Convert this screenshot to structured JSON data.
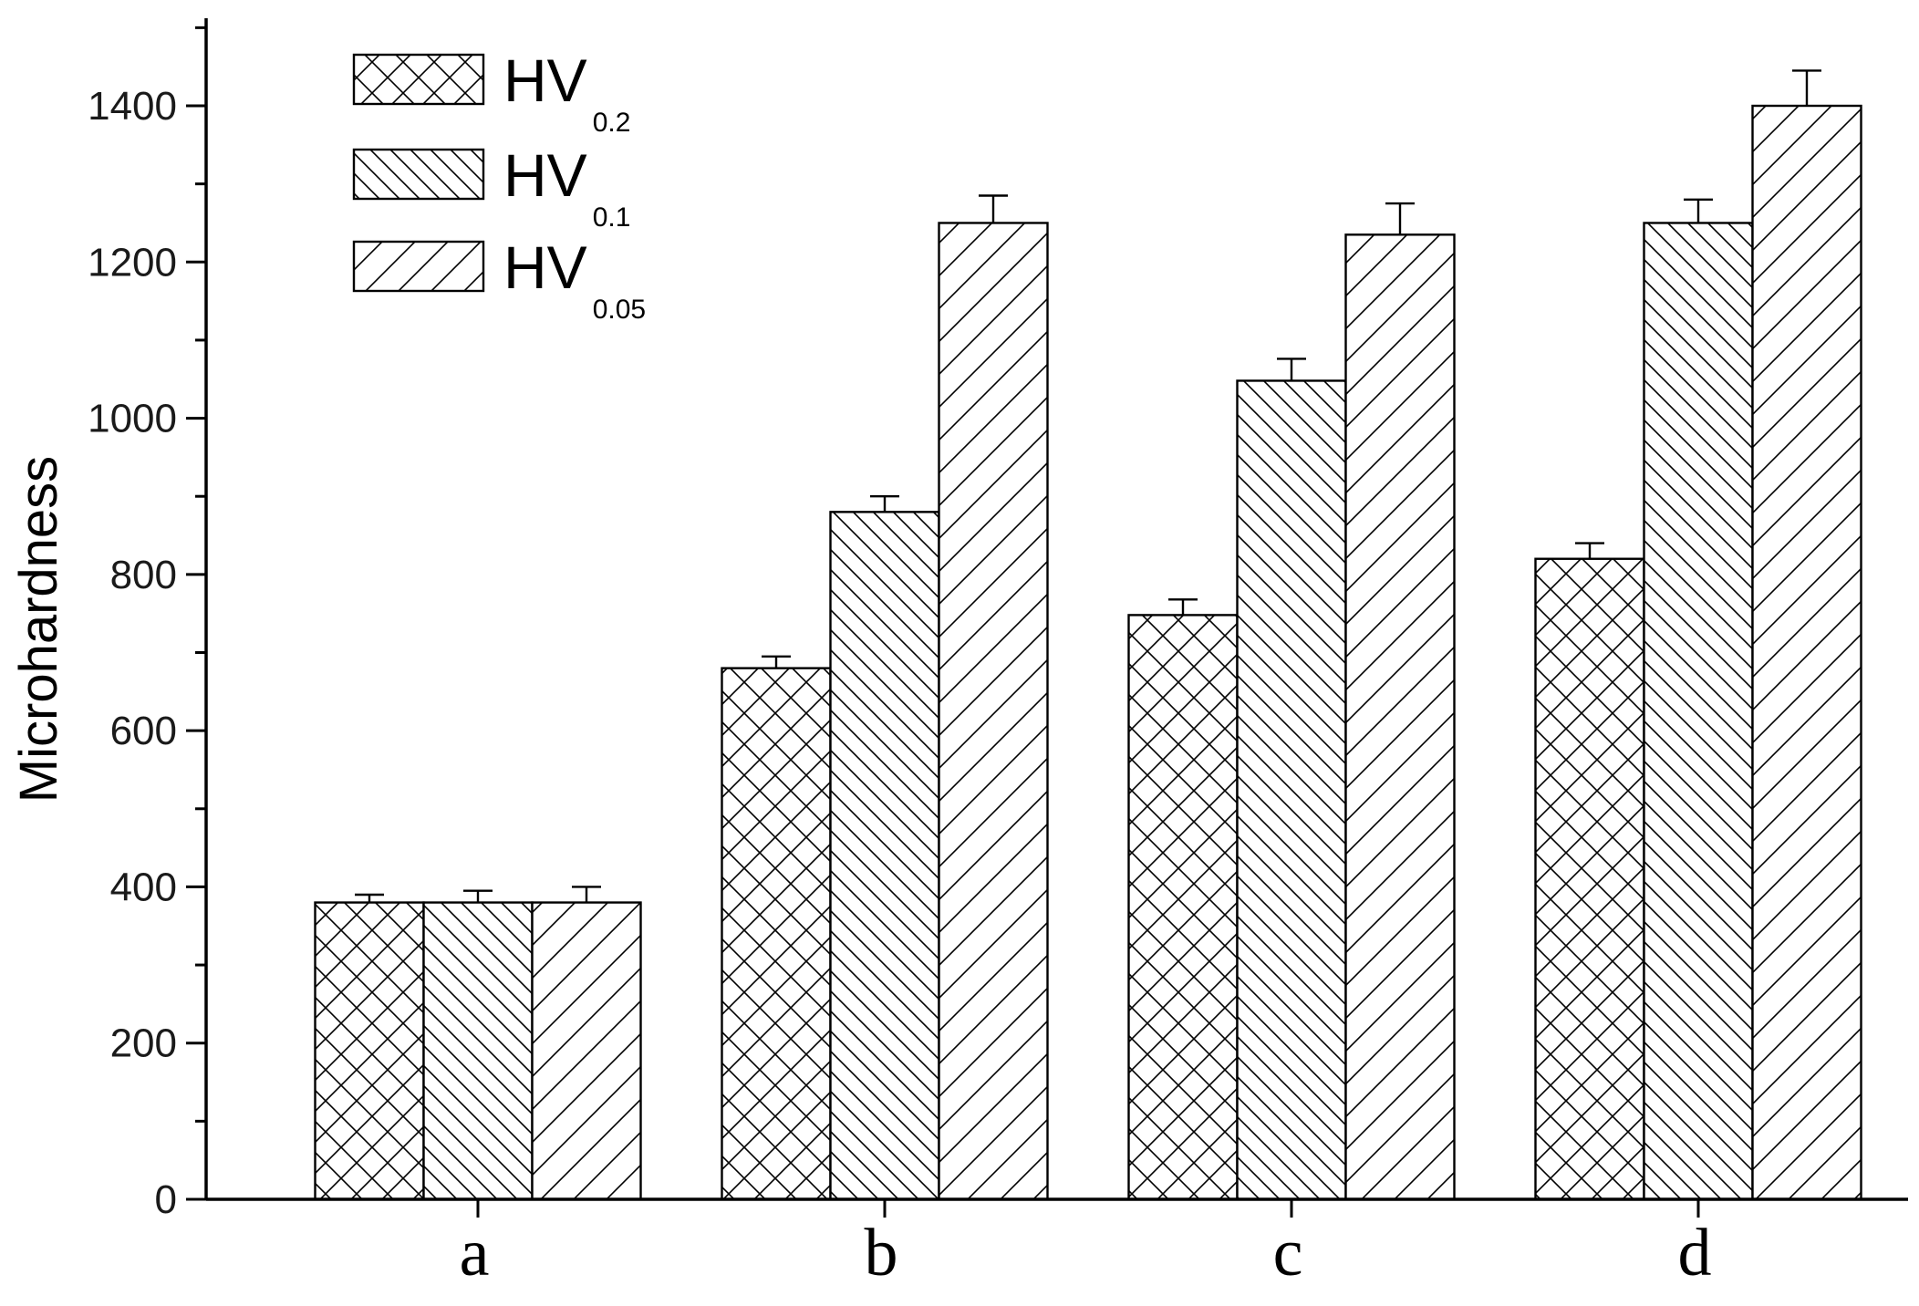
{
  "chart_data": {
    "type": "bar",
    "ylabel": "Microhardness",
    "xlabel": "",
    "ylim": [
      0,
      1500
    ],
    "yticks": [
      0,
      200,
      400,
      600,
      800,
      1000,
      1200,
      1400
    ],
    "grid": false,
    "legend_position": "top-left",
    "categories": [
      "a",
      "b",
      "c",
      "d"
    ],
    "series": [
      {
        "name": "HV",
        "name_sub": "0.2",
        "pattern": "crosshatch",
        "values": [
          380,
          680,
          748,
          820
        ],
        "errors": [
          10,
          15,
          20,
          20
        ]
      },
      {
        "name": "HV",
        "name_sub": "0.1",
        "pattern": "backslash",
        "values": [
          380,
          880,
          1048,
          1250
        ],
        "errors": [
          15,
          20,
          28,
          30
        ]
      },
      {
        "name": "HV",
        "name_sub": "0.05",
        "pattern": "forwardslash",
        "values": [
          380,
          1250,
          1235,
          1400
        ],
        "errors": [
          20,
          35,
          40,
          45
        ]
      }
    ]
  }
}
